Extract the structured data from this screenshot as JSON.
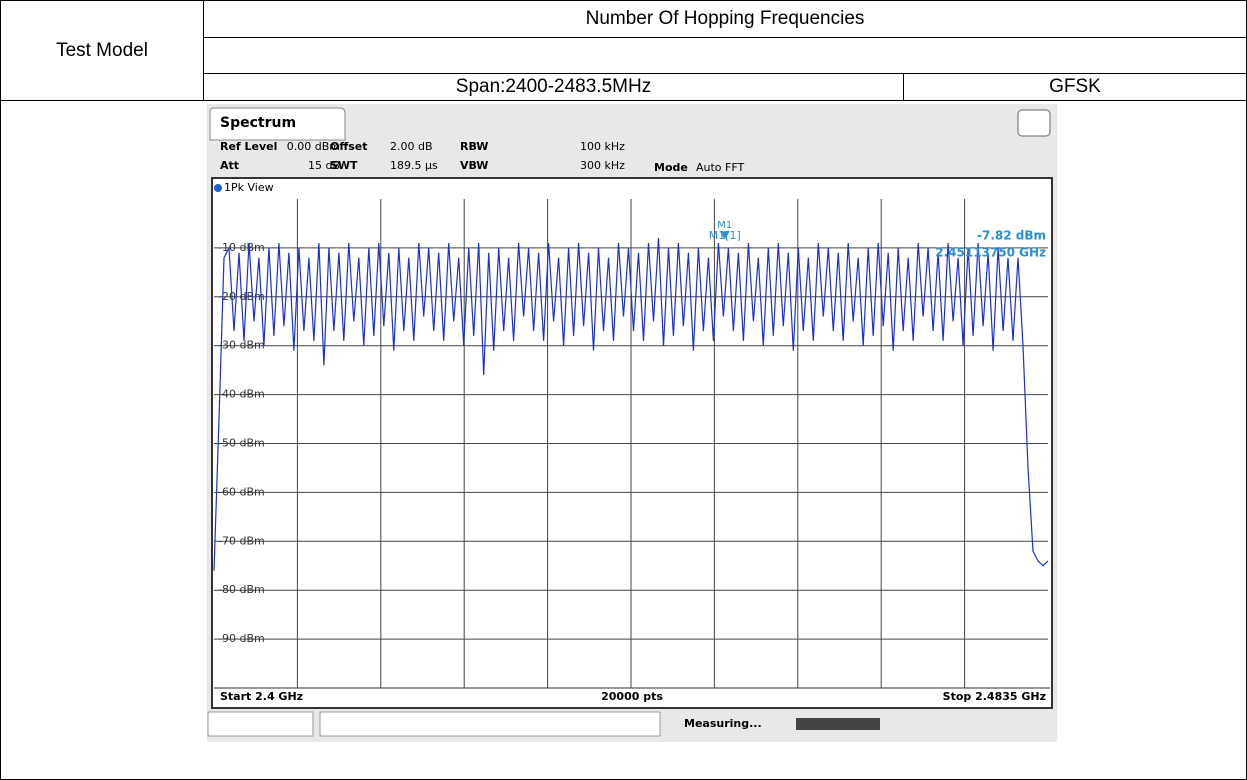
{
  "table": {
    "row_header": "Test Model",
    "title": "Number Of Hopping Frequencies",
    "span": "Span:2400-2483.5MHz",
    "mode": "GFSK"
  },
  "analyzer": {
    "tab": "Spectrum",
    "settings": [
      [
        "Ref Level",
        "0.00 dBm",
        "Offset",
        "2.00 dB",
        "RBW",
        "100 kHz"
      ],
      [
        "Att",
        "15 dB",
        "SWT",
        "189.5 µs",
        "VBW",
        "300 kHz"
      ]
    ],
    "fft_label": "Mode",
    "fft_value": "Auto FFT",
    "view": "1Pk View",
    "marker": {
      "label": "M1[1]",
      "tag": "M1",
      "level_label": "-7.82 dBm",
      "freq_label": "2.45113750 GHz",
      "x": 2.4511375,
      "y": -7.82
    },
    "xlim": [
      2.4,
      2.4835
    ],
    "ylim": [
      -100,
      0
    ],
    "yticks": [
      {
        "value": -10,
        "label": "-10 dBm"
      },
      {
        "value": -20,
        "label": "-20 dBm"
      },
      {
        "value": -30,
        "label": "-30 dBm"
      },
      {
        "value": -40,
        "label": "-40 dBm"
      },
      {
        "value": -50,
        "label": "-50 dBm"
      },
      {
        "value": -60,
        "label": "-60 dBm"
      },
      {
        "value": -70,
        "label": "-70 dBm"
      },
      {
        "value": -80,
        "label": "-80 dBm"
      },
      {
        "value": -90,
        "label": "-90 dBm"
      }
    ],
    "start": "Start 2.4 GHz",
    "points": "20000 pts",
    "stop": "Stop 2.4835 GHz",
    "status": "Measuring...",
    "trace": [
      -76,
      -45,
      -12,
      -10,
      -27,
      -11,
      -29,
      -9,
      -25,
      -12,
      -30,
      -10,
      -28,
      -9,
      -26,
      -11,
      -31,
      -10,
      -27,
      -12,
      -29,
      -9,
      -34,
      -10,
      -27,
      -11,
      -29,
      -9,
      -25,
      -12,
      -30,
      -10,
      -28,
      -9,
      -26,
      -11,
      -31,
      -10,
      -27,
      -12,
      -29,
      -9,
      -24,
      -10,
      -27,
      -11,
      -29,
      -9,
      -25,
      -12,
      -30,
      -10,
      -28,
      -9,
      -36,
      -11,
      -31,
      -10,
      -27,
      -12,
      -29,
      -9,
      -24,
      -10,
      -27,
      -11,
      -29,
      -9,
      -25,
      -12,
      -30,
      -10,
      -28,
      -9,
      -26,
      -11,
      -31,
      -10,
      -27,
      -12,
      -29,
      -9,
      -24,
      -10,
      -27,
      -11,
      -29,
      -9,
      -25,
      -8,
      -30,
      -10,
      -28,
      -9,
      -26,
      -11,
      -31,
      -10,
      -27,
      -12,
      -29,
      -9,
      -24,
      -10,
      -27,
      -11,
      -29,
      -9,
      -25,
      -12,
      -30,
      -10,
      -28,
      -9,
      -26,
      -11,
      -31,
      -10,
      -27,
      -12,
      -29,
      -9,
      -24,
      -10,
      -27,
      -11,
      -29,
      -9,
      -25,
      -12,
      -30,
      -10,
      -28,
      -9,
      -26,
      -11,
      -31,
      -10,
      -27,
      -12,
      -29,
      -9,
      -24,
      -10,
      -27,
      -11,
      -29,
      -9,
      -25,
      -12,
      -30,
      -10,
      -28,
      -9,
      -26,
      -11,
      -31,
      -10,
      -27,
      -12,
      -29,
      -12,
      -30,
      -55,
      -72,
      -74,
      -75,
      -74
    ]
  }
}
